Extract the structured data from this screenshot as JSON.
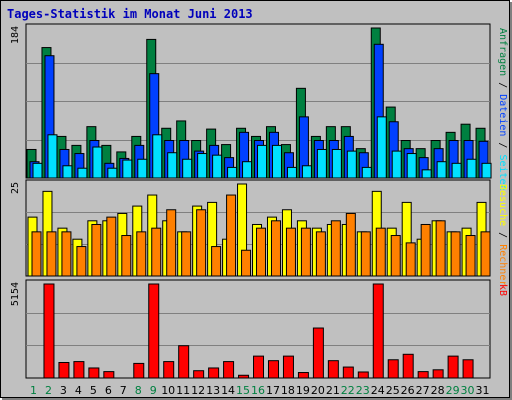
{
  "chart_data": {
    "type": "bar",
    "title": "Tages-Statistik im Monat Juni 2013",
    "x": [
      "1",
      "2",
      "3",
      "4",
      "5",
      "6",
      "7",
      "8",
      "9",
      "10",
      "11",
      "12",
      "13",
      "14",
      "15",
      "16",
      "17",
      "18",
      "19",
      "20",
      "21",
      "22",
      "23",
      "24",
      "25",
      "26",
      "27",
      "28",
      "29",
      "30",
      "31"
    ],
    "weekend_days": [
      "1",
      "2",
      "8",
      "9",
      "15",
      "16",
      "22",
      "23",
      "29",
      "30"
    ],
    "panels": [
      {
        "name": "requests",
        "y_tick": "184",
        "ylim": [
          0,
          184
        ],
        "legend": [
          "Anfragen",
          "Dateien",
          "Seiten"
        ],
        "series": [
          {
            "name": "Anfragen",
            "color": "#008040",
            "values": [
              35,
              160,
              51,
              40,
              63,
              40,
              32,
              51,
              170,
              61,
              70,
              46,
              60,
              41,
              61,
              51,
              63,
              41,
              110,
              51,
              63,
              63,
              36,
              184,
              87,
              46,
              36,
              46,
              56,
              66,
              61
            ]
          },
          {
            "name": "Dateien",
            "color": "#0040ff",
            "values": [
              20,
              150,
              35,
              30,
              46,
              18,
              24,
              40,
              128,
              46,
              46,
              33,
              40,
              25,
              56,
              46,
              56,
              31,
              75,
              46,
              46,
              51,
              31,
              164,
              69,
              36,
              25,
              36,
              46,
              46,
              45
            ]
          },
          {
            "name": "Seiten",
            "color": "#00e0ff",
            "values": [
              18,
              53,
              15,
              12,
              38,
              12,
              22,
              23,
              53,
              31,
              23,
              30,
              28,
              13,
              20,
              40,
              40,
              13,
              15,
              35,
              35,
              33,
              13,
              75,
              33,
              30,
              10,
              20,
              18,
              23,
              18
            ]
          }
        ]
      },
      {
        "name": "visits",
        "y_tick": "25",
        "ylim": [
          0,
          25
        ],
        "legend": [
          "Besuche",
          "Rechner"
        ],
        "series": [
          {
            "name": "Besuche",
            "color": "#ffff00",
            "values": [
              16,
              23,
              13,
              10,
              15,
              15,
              17,
              19,
              22,
              15,
              12,
              19,
              20,
              10,
              25,
              14,
              16,
              18,
              15,
              13,
              14,
              14,
              12,
              23,
              13,
              20,
              10,
              15,
              12,
              13,
              20
            ]
          },
          {
            "name": "Rechner",
            "color": "#ff8000",
            "values": [
              12,
              12,
              12,
              8,
              14,
              16,
              11,
              12,
              13,
              18,
              12,
              18,
              8,
              22,
              7,
              13,
              15,
              13,
              13,
              12,
              15,
              17,
              12,
              13,
              11,
              9,
              14,
              15,
              12,
              11,
              12
            ]
          }
        ]
      },
      {
        "name": "kb",
        "y_tick": "5154",
        "ylim": [
          0,
          5154
        ],
        "legend": [
          "kB"
        ],
        "series": [
          {
            "name": "kB",
            "color": "#ff0000",
            "values": [
              0,
              5154,
              850,
              900,
              550,
              350,
              0,
              800,
              5154,
              900,
              1770,
              400,
              550,
              900,
              150,
              1200,
              950,
              1200,
              300,
              2740,
              950,
              600,
              330,
              5154,
              1000,
              1300,
              350,
              450,
              1200,
              1000,
              0
            ]
          }
        ]
      }
    ]
  }
}
